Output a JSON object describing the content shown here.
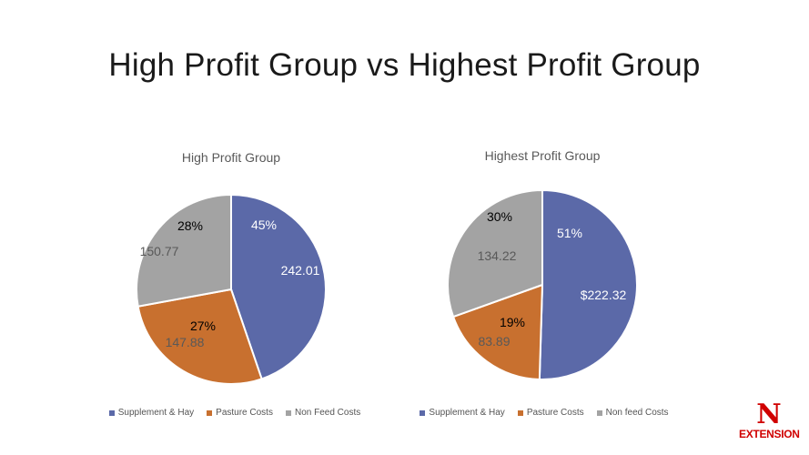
{
  "slide_title": "High Profit Group vs Highest Profit Group",
  "colors": {
    "supplement": "#5b69a8",
    "pasture": "#c8702f",
    "nonfeed": "#a3a3a3"
  },
  "chart_data": [
    {
      "type": "pie",
      "title": "High Profit Group",
      "slices": [
        {
          "name": "Supplement & Hay",
          "value": 242.01,
          "value_label": "242.01",
          "pct_label": "45%"
        },
        {
          "name": "Pasture Costs",
          "value": 147.88,
          "value_label": "147.88",
          "pct_label": "27%"
        },
        {
          "name": "Non Feed Costs",
          "value": 150.77,
          "value_label": "150.77",
          "pct_label": "28%"
        }
      ],
      "legend": [
        "Supplement & Hay",
        "Pasture Costs",
        "Non Feed Costs"
      ],
      "legend_position": "bottom"
    },
    {
      "type": "pie",
      "title": "Highest Profit Group",
      "slices": [
        {
          "name": "Supplement & Hay",
          "value": 222.32,
          "value_label": "$222.32",
          "pct_label": "51%"
        },
        {
          "name": "Pasture Costs",
          "value": 83.89,
          "value_label": "83.89",
          "pct_label": "19%"
        },
        {
          "name": "Non feed Costs",
          "value": 134.22,
          "value_label": "134.22",
          "pct_label": "30%"
        }
      ],
      "legend": [
        "Supplement & Hay",
        "Pasture Costs",
        "Non feed Costs"
      ],
      "legend_position": "bottom"
    }
  ],
  "logo": {
    "letter": "N",
    "text": "EXTENSION"
  }
}
